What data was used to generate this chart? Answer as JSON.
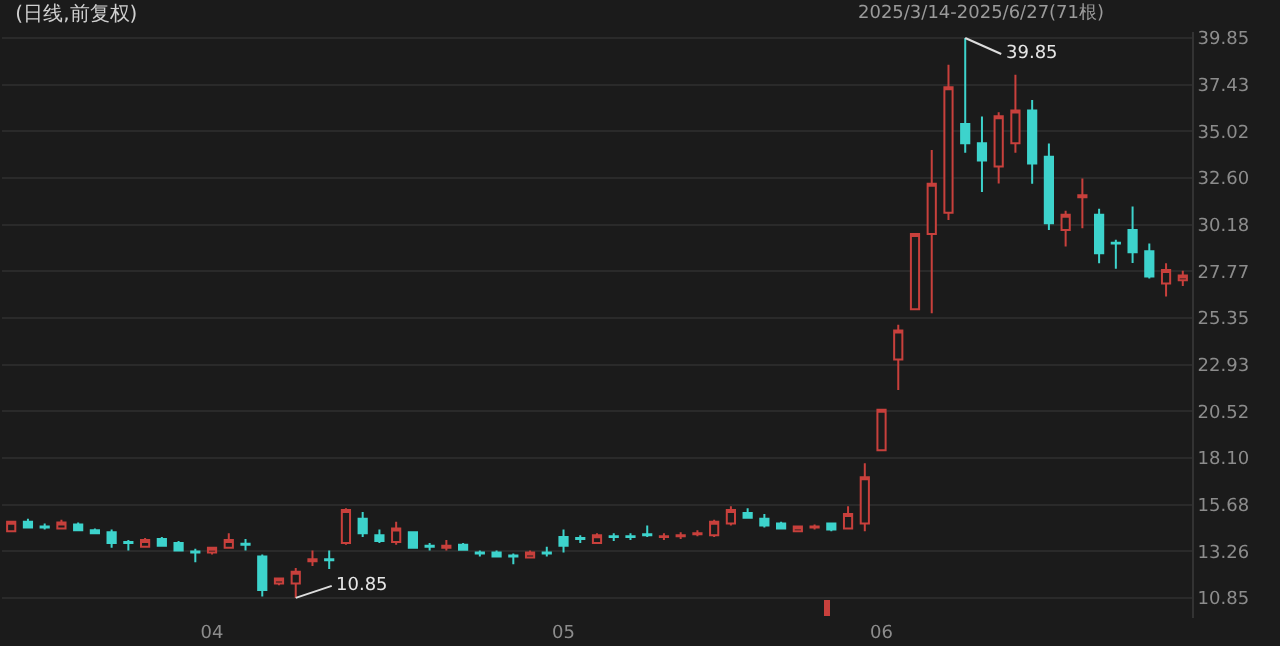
{
  "chart_data": {
    "type": "candlestick",
    "title": "(日线,前复权)",
    "categories": [
      null,
      null,
      null,
      null,
      null,
      null,
      null,
      null,
      null,
      null,
      null,
      null,
      "04",
      null,
      null,
      null,
      null,
      null,
      null,
      null,
      null,
      null,
      null,
      null,
      null,
      null,
      null,
      null,
      null,
      null,
      null,
      null,
      null,
      "05",
      null,
      null,
      null,
      null,
      null,
      null,
      null,
      null,
      null,
      null,
      null,
      null,
      null,
      null,
      null,
      null,
      null,
      null,
      "06",
      null,
      null,
      null,
      null,
      null,
      null,
      null,
      null,
      null,
      null,
      null,
      null,
      null,
      null,
      null,
      null,
      null,
      null
    ],
    "ohlc": [
      [
        14.3,
        14.85,
        14.25,
        14.8
      ],
      [
        14.8,
        14.95,
        14.45,
        14.5
      ],
      [
        14.55,
        14.7,
        14.4,
        14.5
      ],
      [
        14.45,
        14.9,
        14.4,
        14.75
      ],
      [
        14.65,
        14.75,
        14.3,
        14.35
      ],
      [
        14.35,
        14.45,
        14.15,
        14.2
      ],
      [
        14.25,
        14.4,
        13.45,
        13.7
      ],
      [
        13.75,
        13.85,
        13.3,
        13.7
      ],
      [
        13.5,
        13.95,
        13.45,
        13.85
      ],
      [
        13.9,
        14.0,
        13.5,
        13.55
      ],
      [
        13.7,
        13.8,
        13.25,
        13.3
      ],
      [
        13.25,
        13.4,
        12.7,
        13.2
      ],
      [
        13.2,
        13.5,
        13.1,
        13.45
      ],
      [
        13.45,
        14.2,
        13.4,
        13.85
      ],
      [
        13.65,
        13.9,
        13.3,
        13.6
      ],
      [
        12.99,
        13.1,
        10.92,
        11.26
      ],
      [
        11.6,
        11.9,
        11.5,
        11.85
      ],
      [
        11.6,
        12.4,
        10.85,
        12.2
      ],
      [
        12.75,
        13.3,
        12.5,
        12.85
      ],
      [
        12.85,
        13.3,
        12.35,
        12.8
      ],
      [
        13.7,
        15.5,
        13.6,
        15.4
      ],
      [
        14.95,
        15.3,
        14.0,
        14.2
      ],
      [
        14.1,
        14.4,
        13.7,
        13.8
      ],
      [
        13.75,
        14.8,
        13.6,
        14.45
      ],
      [
        14.25,
        14.3,
        13.4,
        13.45
      ],
      [
        13.55,
        13.7,
        13.3,
        13.5
      ],
      [
        13.45,
        13.85,
        13.3,
        13.55
      ],
      [
        13.6,
        13.7,
        13.3,
        13.35
      ],
      [
        13.2,
        13.3,
        13.0,
        13.15
      ],
      [
        13.2,
        13.3,
        12.95,
        13.0
      ],
      [
        13.05,
        13.15,
        12.6,
        13.0
      ],
      [
        12.95,
        13.3,
        12.9,
        13.2
      ],
      [
        13.2,
        13.5,
        13.0,
        13.15
      ],
      [
        14.0,
        14.4,
        13.2,
        13.55
      ],
      [
        13.95,
        14.1,
        13.7,
        13.9
      ],
      [
        13.7,
        14.2,
        13.65,
        14.1
      ],
      [
        14.05,
        14.2,
        13.8,
        14.0
      ],
      [
        14.05,
        14.2,
        13.85,
        14.0
      ],
      [
        14.15,
        14.6,
        14.0,
        14.1
      ],
      [
        14.0,
        14.2,
        13.85,
        14.05
      ],
      [
        14.05,
        14.25,
        13.9,
        14.1
      ],
      [
        14.15,
        14.35,
        14.05,
        14.2
      ],
      [
        14.1,
        14.9,
        14.0,
        14.8
      ],
      [
        14.7,
        15.6,
        14.6,
        15.4
      ],
      [
        15.25,
        15.5,
        14.95,
        15.0
      ],
      [
        14.95,
        15.2,
        14.5,
        14.6
      ],
      [
        14.7,
        14.8,
        14.4,
        14.45
      ],
      [
        14.3,
        14.6,
        14.25,
        14.55
      ],
      [
        14.5,
        14.65,
        14.4,
        14.55
      ],
      [
        14.7,
        14.75,
        14.3,
        14.4
      ],
      [
        14.45,
        15.6,
        14.4,
        15.2
      ],
      [
        14.7,
        17.82,
        14.3,
        17.1
      ],
      [
        18.5,
        20.6,
        18.5,
        20.6
      ],
      [
        23.2,
        25.0,
        21.62,
        24.7
      ],
      [
        25.8,
        29.7,
        25.8,
        29.7
      ],
      [
        29.7,
        34.05,
        25.59,
        32.3
      ],
      [
        30.8,
        38.47,
        30.42,
        37.3
      ],
      [
        35.4,
        39.85,
        33.9,
        34.4
      ],
      [
        34.4,
        35.78,
        31.87,
        33.5
      ],
      [
        33.2,
        36.0,
        32.32,
        35.8
      ],
      [
        34.4,
        37.95,
        33.9,
        36.1
      ],
      [
        36.1,
        36.64,
        32.3,
        33.35
      ],
      [
        33.7,
        34.39,
        29.9,
        30.25
      ],
      [
        29.9,
        30.9,
        29.05,
        30.7
      ],
      [
        31.6,
        32.57,
        30.0,
        31.7
      ],
      [
        30.7,
        31.0,
        28.18,
        28.7
      ],
      [
        29.25,
        29.4,
        27.9,
        29.2
      ],
      [
        29.9,
        31.12,
        28.2,
        28.75
      ],
      [
        28.8,
        29.2,
        27.4,
        27.5
      ],
      [
        27.14,
        28.18,
        26.46,
        27.84
      ],
      [
        27.3,
        27.8,
        27.0,
        27.55
      ]
    ],
    "colors": [
      "#c8403c",
      "#3dd3cc",
      "#3dd3cc",
      "#c8403c",
      "#3dd3cc",
      "#3dd3cc",
      "#3dd3cc",
      "#3dd3cc",
      "#c8403c",
      "#3dd3cc",
      "#3dd3cc",
      "#3dd3cc",
      "#c8403c",
      "#c8403c",
      "#3dd3cc",
      "#3dd3cc",
      "#c8403c",
      "#c8403c",
      "#c8403c",
      "#3dd3cc",
      "#c8403c",
      "#3dd3cc",
      "#3dd3cc",
      "#c8403c",
      "#3dd3cc",
      "#3dd3cc",
      "#c8403c",
      "#3dd3cc",
      "#3dd3cc",
      "#3dd3cc",
      "#3dd3cc",
      "#c8403c",
      "#3dd3cc",
      "#3dd3cc",
      "#3dd3cc",
      "#c8403c",
      "#3dd3cc",
      "#3dd3cc",
      "#3dd3cc",
      "#c8403c",
      "#c8403c",
      "#c8403c",
      "#c8403c",
      "#c8403c",
      "#3dd3cc",
      "#3dd3cc",
      "#3dd3cc",
      "#c8403c",
      "#c8403c",
      "#3dd3cc",
      "#c8403c",
      "#c8403c",
      "#c8403c",
      "#c8403c",
      "#c8403c",
      "#c8403c",
      "#c8403c",
      "#3dd3cc",
      "#3dd3cc",
      "#c8403c",
      "#c8403c",
      "#3dd3cc",
      "#3dd3cc",
      "#c8403c",
      "#c8403c",
      "#3dd3cc",
      "#3dd3cc",
      "#3dd3cc",
      "#3dd3cc",
      "#c8403c",
      "#c8403c"
    ],
    "ylim": [
      9.81,
      40.16
    ],
    "yticks": [
      39.85,
      37.43,
      35.02,
      {
        "value": 32.6,
        "label": "32.60"
      },
      30.18,
      27.77,
      25.35,
      22.93,
      20.52,
      {
        "value": 18.1,
        "label": "18.10"
      },
      15.68,
      13.26,
      10.85
    ],
    "grid": "y",
    "annotations": [
      "2025/3/14-2025/6/27(71根)",
      "39.85",
      "10.85"
    ]
  }
}
